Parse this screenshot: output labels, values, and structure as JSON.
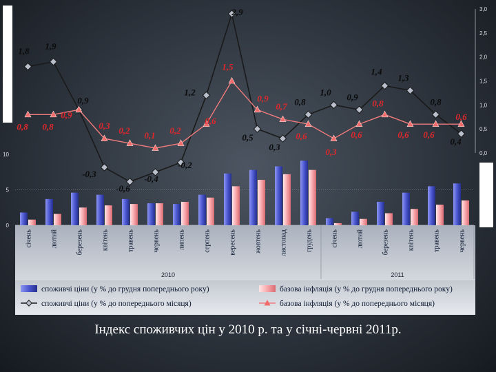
{
  "chart_data": {
    "type": "bar+line",
    "caption": "Індекс споживчих цін у 2010 р. та у січні-червні 2011р.",
    "categories": [
      "січень",
      "лютий",
      "березень",
      "квітень",
      "травень",
      "червень",
      "липень",
      "серпень",
      "вересень",
      "жовтень",
      "листопад",
      "грудень",
      "січень",
      "лютий",
      "березень",
      "квітень",
      "травень",
      "червень"
    ],
    "years": [
      {
        "label": "2010",
        "from": 0,
        "to": 11
      },
      {
        "label": "2011",
        "from": 12,
        "to": 17
      }
    ],
    "bar_axis": {
      "ticks": [
        0,
        5,
        10
      ],
      "ylim": [
        0,
        10
      ]
    },
    "line_axis": {
      "ticks": [
        "0,0",
        "0,5",
        "1,0",
        "1,5",
        "2,0",
        "2,5",
        "3,0"
      ],
      "ylim": [
        0,
        3.0
      ]
    },
    "series": [
      {
        "name": "споживчі ціни (у % до грудня попереднього року)",
        "kind": "bar",
        "axis": "left",
        "color": "#3a46b8",
        "values": [
          1.8,
          3.7,
          4.6,
          4.3,
          3.7,
          3.1,
          3.0,
          4.3,
          7.3,
          7.8,
          8.3,
          9.1,
          1.0,
          1.9,
          3.3,
          4.6,
          5.5,
          5.9
        ]
      },
      {
        "name": "базова інфляція (у % до грудня попереднього року)",
        "kind": "bar",
        "axis": "left",
        "color": "#f4a3a6",
        "values": [
          0.8,
          1.6,
          2.5,
          2.8,
          3.0,
          3.1,
          3.3,
          3.9,
          5.5,
          6.4,
          7.2,
          7.8,
          0.3,
          0.9,
          1.7,
          2.3,
          2.9,
          3.5
        ]
      },
      {
        "name": "споживчі ціни (у % до попереднього місяця)",
        "kind": "line",
        "axis": "right",
        "color": "#1a1a1a",
        "values": [
          1.8,
          1.9,
          0.9,
          -0.3,
          -0.6,
          -0.4,
          -0.2,
          1.2,
          2.9,
          0.5,
          0.3,
          0.8,
          1.0,
          0.9,
          1.4,
          1.3,
          0.8,
          0.4
        ],
        "labels": [
          "1,8",
          "1,9",
          "0,9",
          "-0,3",
          "-0,6",
          "-0,4",
          "-0,2",
          "1,2",
          "2,9",
          "0,5",
          "0,3",
          "0,8",
          "1,0",
          "0,9",
          "1,4",
          "1,3",
          "0,8",
          "0,4"
        ]
      },
      {
        "name": "базова інфляція (у % до попереднього місяця)",
        "kind": "line",
        "axis": "right",
        "color": "#ef7b7b",
        "values": [
          0.8,
          0.8,
          0.9,
          0.3,
          0.2,
          0.1,
          0.2,
          0.6,
          1.5,
          0.9,
          0.7,
          0.6,
          0.3,
          0.6,
          0.8,
          0.6,
          0.6,
          0.6
        ],
        "labels": [
          "0,8",
          "0,8",
          "0,9",
          "0,3",
          "0,2",
          "0,1",
          "0,2",
          "0,6",
          "1,5",
          "0,9",
          "0,7",
          "0,6",
          "0,3",
          "0,6",
          "0,8",
          "0,6",
          "0,6",
          "0,6"
        ]
      }
    ]
  }
}
